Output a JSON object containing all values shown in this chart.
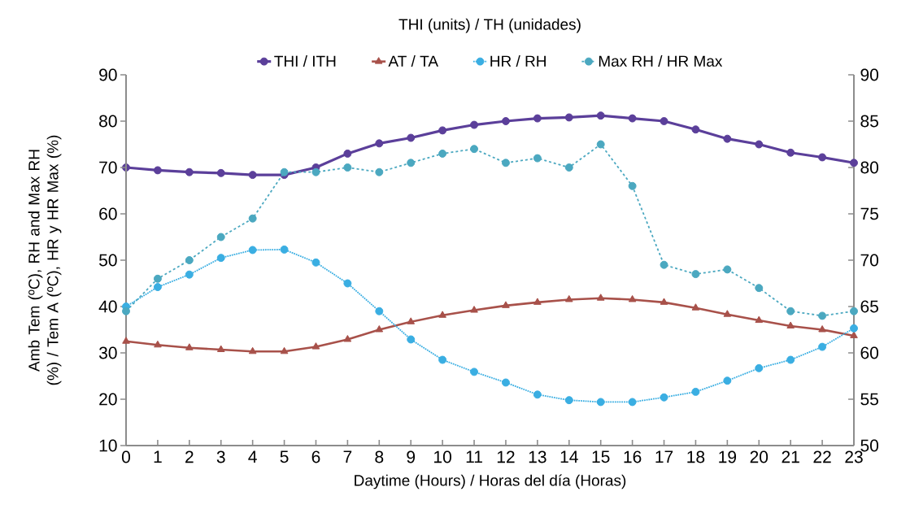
{
  "chart_data": {
    "type": "line",
    "xlabel": "Daytime (Hours) / Horas del día (Horas)",
    "ylabel": "Amb Tem (ºC), RH and Max RH (%) / Tem A (ºC), HR y HR Max (%)",
    "y2label": "THI (units) / TH (unidades)",
    "x": [
      0,
      1,
      2,
      3,
      4,
      5,
      6,
      7,
      8,
      9,
      10,
      11,
      12,
      13,
      14,
      15,
      16,
      17,
      18,
      19,
      20,
      21,
      22,
      23
    ],
    "xlim": [
      0,
      23
    ],
    "xticks": [
      0,
      1,
      2,
      3,
      4,
      5,
      6,
      7,
      8,
      9,
      10,
      11,
      12,
      13,
      14,
      15,
      16,
      17,
      18,
      19,
      20,
      21,
      22,
      23
    ],
    "ylim": [
      10,
      90
    ],
    "yticks": [
      10,
      20,
      30,
      40,
      50,
      60,
      70,
      80,
      90
    ],
    "y2lim": [
      50,
      90
    ],
    "y2ticks": [
      50,
      55,
      60,
      65,
      70,
      75,
      80,
      85,
      90
    ],
    "legend": "top",
    "grid": false,
    "series": [
      {
        "name": "THI / ITH",
        "color": "#5b3f9a",
        "axis": "y2",
        "marker": "circle",
        "line_style": "solid",
        "values": [
          80.0,
          79.7,
          79.5,
          79.4,
          79.2,
          79.2,
          80.0,
          81.5,
          82.6,
          83.2,
          84.0,
          84.6,
          85.0,
          85.3,
          85.4,
          85.6,
          85.3,
          85.0,
          84.1,
          83.1,
          82.5,
          81.6,
          81.1,
          80.5
        ]
      },
      {
        "name": "AT / TA",
        "color": "#a8514a",
        "marker": "triangle",
        "line_style": "solid",
        "values": [
          32.5,
          31.7,
          31.1,
          30.7,
          30.3,
          30.3,
          31.3,
          32.9,
          35.0,
          36.7,
          38.1,
          39.2,
          40.2,
          40.9,
          41.5,
          41.8,
          41.5,
          40.9,
          39.7,
          38.3,
          37.0,
          35.8,
          35.0,
          33.7
        ]
      },
      {
        "name": "HR / RH",
        "color": "#3aaee2",
        "marker": "circle",
        "line_style": "dotted",
        "values": [
          40.0,
          44.2,
          46.9,
          50.5,
          52.2,
          52.3,
          49.5,
          45.0,
          39.0,
          32.9,
          28.5,
          25.9,
          23.6,
          21.0,
          19.8,
          19.4,
          19.4,
          20.4,
          21.6,
          24.0,
          26.7,
          28.5,
          31.3,
          35.3
        ]
      },
      {
        "name": "Max RH / HR Max",
        "color": "#4ba8c0",
        "marker": "circle",
        "line_style": "dashed",
        "values": [
          39,
          46,
          50,
          55,
          59,
          69,
          69,
          70,
          69,
          71,
          73,
          74,
          71,
          72,
          70,
          75,
          66,
          49,
          47,
          48,
          44,
          39,
          38,
          39
        ]
      }
    ]
  }
}
